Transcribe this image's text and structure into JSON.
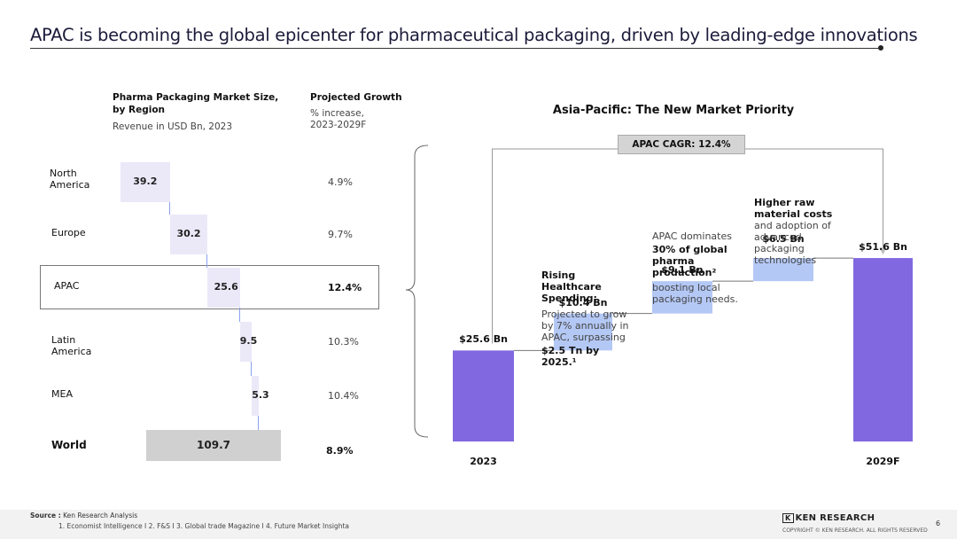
{
  "title": "APAC is becoming the global epicenter for pharmaceutical packaging, driven by leading-edge innovations",
  "left_chart": {
    "header_title": "Pharma Packaging Market Size, by Region",
    "header_unit": "Revenue in USD Bn, 2023",
    "growth_title": "Projected Growth",
    "growth_unit": "% increase, 2023-2029F"
  },
  "right_chart": {
    "title": "Asia-Pacific: The New Market Priority",
    "cagr_label": "APAC CAGR: 12.4%",
    "notes": {
      "healthcare_title": "Rising Healthcare Spending:",
      "healthcare_body": "Projected to grow by 7% annually in APAC, surpassing",
      "healthcare_bold": "$2.5 Tn by 2025.¹",
      "production_intro": "APAC dominates",
      "production_bold": "30% of global pharma production²",
      "production_body": "boosting local packaging needs.",
      "raw_bold": "Higher raw material costs",
      "raw_body": "and adoption of advanced packaging technologies"
    }
  },
  "chart_data": [
    {
      "type": "bar",
      "subtype": "waterfall-horizontal",
      "title": "Pharma Packaging Market Size, by Region",
      "unit": "Revenue in USD Bn, 2023",
      "categories": [
        "North America",
        "Europe",
        "APAC",
        "Latin America",
        "MEA"
      ],
      "values": [
        39.2,
        30.2,
        25.6,
        9.5,
        5.3
      ],
      "value_labels": [
        "39.2",
        "30.2",
        "25.6",
        "9.5",
        "5.3"
      ],
      "growth": [
        "4.9%",
        "9.7%",
        "12.4%",
        "10.3%",
        "10.4%"
      ],
      "total": {
        "label": "World",
        "value": 109.7,
        "value_label": "109.7",
        "growth": "8.9%"
      },
      "highlight": "APAC"
    },
    {
      "type": "bar",
      "subtype": "waterfall-vertical",
      "title": "Asia-Pacific: The New Market Priority",
      "categories": [
        "2023",
        "Rising Healthcare Spending",
        "APAC pharma production",
        "Higher raw material costs",
        "2029F"
      ],
      "values": [
        25.6,
        10.4,
        9.1,
        6.5,
        51.6
      ],
      "value_labels": [
        "$25.6 Bn",
        "$10.4 Bn",
        "$9.1 Bn",
        "$6.5 Bn",
        "$51.6 Bn"
      ],
      "totals": [
        "2023",
        "2029F"
      ],
      "x_labels": [
        "2023",
        "2029F"
      ],
      "annotation": "APAC CAGR: 12.4%"
    }
  ],
  "footer": {
    "source_label": "Source :",
    "source_text": "Ken Research Analysis",
    "refs": "1. Economist Intelligence I 2. F&S I 3.  Global trade Magazine  I 4. Future Market Insighta",
    "brand": "KEN RESEARCH",
    "copyright": "COPYRIGHT © KEN RESEARCH. ALL RIGHTS RESERVED",
    "page_number": "6"
  },
  "colors": {
    "total_bar": "#8268e0",
    "increment_bar": "#b4c8f5",
    "region_bar": "#ebe9f8",
    "world_bar": "#d0d0d0",
    "connector": "#8aa2ef",
    "cagr_box": "#d4d4d4"
  }
}
